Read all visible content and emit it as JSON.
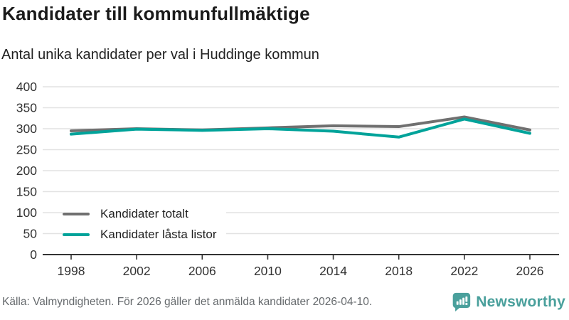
{
  "header": {
    "title": "Kandidater till kommunfullmäktige",
    "subtitle": "Antal unika kandidater per val i Huddinge kommun"
  },
  "chart_data": {
    "type": "line",
    "categories": [
      1998,
      2002,
      2006,
      2010,
      2014,
      2018,
      2022,
      2026
    ],
    "series": [
      {
        "name": "Kandidater totalt",
        "color": "#707070",
        "values": [
          295,
          300,
          297,
          302,
          307,
          305,
          328,
          297
        ]
      },
      {
        "name": "Kandidater låsta listor",
        "color": "#00a39a",
        "values": [
          287,
          299,
          296,
          300,
          294,
          280,
          323,
          289
        ]
      }
    ],
    "title": "Kandidater till kommunfullmäktige",
    "subtitle": "Antal unika kandidater per val i Huddinge kommun",
    "xlabel": "",
    "ylabel": "",
    "ylim": [
      0,
      400
    ],
    "yticks": [
      0,
      50,
      100,
      150,
      200,
      250,
      300,
      350,
      400
    ],
    "grid": true,
    "legend_position": "inside-bottom-left"
  },
  "footer": {
    "source": "Källa: Valmyndigheten. För 2026 gäller det anmälda kandidater 2026-04-10.",
    "brand": "Newsworthy",
    "logo_icon": "speech-bubble-bar-chart-icon"
  },
  "colors": {
    "series_total": "#707070",
    "series_locked": "#00a39a",
    "gridline": "#e2e2e2",
    "axis": "#333333",
    "axis_text": "#333333",
    "footer_text": "#666a6d",
    "brand_teal": "#4aa09c"
  }
}
